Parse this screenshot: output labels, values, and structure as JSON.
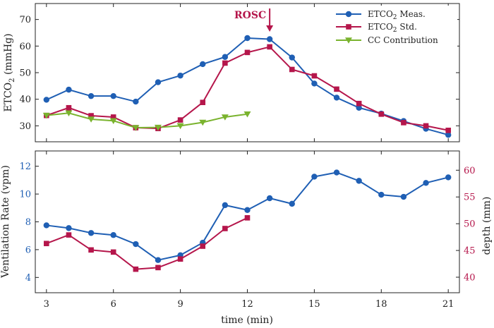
{
  "chart_data": [
    {
      "type": "line",
      "ylabel": "ETCO2 (mmHg)",
      "ylabel_parts": [
        "ETCO",
        "2",
        " (mmHg)"
      ],
      "xlim": [
        2.5,
        21.5
      ],
      "ylim": [
        24,
        76
      ],
      "yticks": [
        30,
        40,
        50,
        60,
        70
      ],
      "grid": false,
      "legend_position": "top-right",
      "annotation": {
        "text": "ROSC",
        "x": 13,
        "color": "#b5164b"
      },
      "series": [
        {
          "name": "ETCO2 Meas.",
          "name_parts": [
            "ETCO",
            "2",
            " Meas."
          ],
          "color": "#1f5fb4",
          "marker": "circle",
          "x": [
            3,
            4,
            5,
            6,
            7,
            8,
            9,
            10,
            11,
            12,
            13,
            14,
            15,
            16,
            17,
            18,
            19,
            20,
            21
          ],
          "values": [
            39.8,
            43.6,
            41.2,
            41.2,
            39.1,
            46.4,
            48.9,
            53.2,
            55.9,
            63.0,
            62.6,
            55.7,
            45.9,
            40.6,
            36.8,
            34.6,
            31.8,
            28.9,
            26.6
          ]
        },
        {
          "name": "ETCO2 Std.",
          "name_parts": [
            "ETCO",
            "2",
            " Std."
          ],
          "color": "#b5164b",
          "marker": "square",
          "x": [
            3,
            4,
            5,
            6,
            7,
            8,
            9,
            10,
            11,
            12,
            13,
            14,
            15,
            16,
            17,
            18,
            19,
            20,
            21
          ],
          "values": [
            33.9,
            36.8,
            33.8,
            33.3,
            29.3,
            29.0,
            32.2,
            38.8,
            53.6,
            57.6,
            59.7,
            51.2,
            48.8,
            43.8,
            38.4,
            34.4,
            31.2,
            30.0,
            28.3
          ]
        },
        {
          "name": "CC Contribution",
          "color": "#7ab32e",
          "marker": "triangle-down",
          "x": [
            3,
            4,
            5,
            6,
            7,
            8,
            9,
            10,
            11,
            12
          ],
          "values": [
            33.9,
            34.8,
            32.5,
            31.9,
            29.3,
            29.4,
            30.0,
            31.3,
            33.3,
            34.4
          ]
        }
      ]
    },
    {
      "type": "line",
      "xlabel": "time (min)",
      "xlim": [
        2.5,
        21.5
      ],
      "xticks": [
        3,
        6,
        9,
        12,
        15,
        18,
        21
      ],
      "ylabel_left": "Ventilation Rate (vpm)",
      "ylabel_right": "depth (mm)",
      "ylim_left": [
        2.9,
        13.1
      ],
      "yticks_left": [
        4,
        6,
        8,
        10,
        12
      ],
      "ylim_right": [
        37.1,
        63.6
      ],
      "yticks_right": [
        40,
        45,
        50,
        55,
        60
      ],
      "grid": false,
      "series": [
        {
          "name": "Ventilation Rate",
          "axis": "left",
          "color": "#1f5fb4",
          "marker": "circle",
          "x": [
            3,
            4,
            5,
            6,
            7,
            8,
            9,
            10,
            11,
            12,
            13,
            14,
            15,
            16,
            17,
            18,
            19,
            20,
            21
          ],
          "values": [
            7.75,
            7.55,
            7.2,
            7.05,
            6.4,
            5.25,
            5.6,
            6.5,
            9.2,
            8.85,
            9.7,
            9.3,
            11.25,
            11.55,
            10.95,
            9.95,
            9.8,
            10.8,
            11.2
          ]
        },
        {
          "name": "depth",
          "axis": "right",
          "color": "#b5164b",
          "marker": "square",
          "x": [
            3,
            4,
            5,
            6,
            7,
            8,
            9,
            10,
            11,
            12
          ],
          "values": [
            46.3,
            47.9,
            45.1,
            44.7,
            41.5,
            41.8,
            43.4,
            45.8,
            49.1,
            51.1
          ]
        }
      ]
    }
  ]
}
